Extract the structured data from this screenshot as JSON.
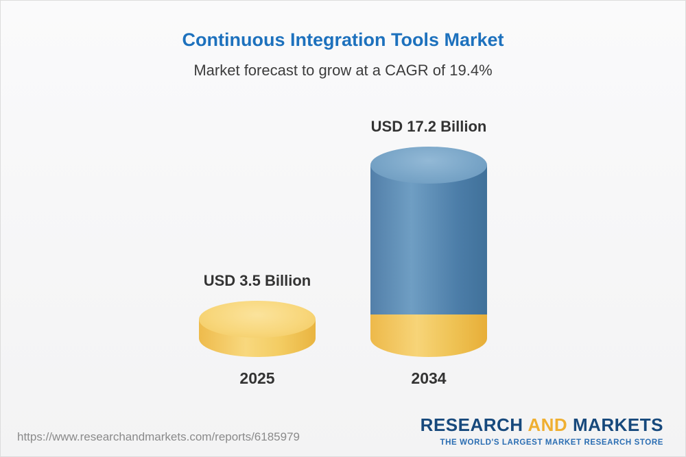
{
  "header": {
    "title": "Continuous Integration Tools Market",
    "subtitle": "Market forecast to grow at a CAGR of 19.4%"
  },
  "chart_data": {
    "type": "bar",
    "categories": [
      "2025",
      "2034"
    ],
    "values": [
      3.5,
      17.2
    ],
    "value_labels": [
      "USD 3.5 Billion",
      "USD 17.2 Billion"
    ],
    "unit": "USD Billion",
    "title": "Continuous Integration Tools Market",
    "subtitle": "Market forecast to grow at a CAGR of 19.4%",
    "cagr": "19.4%",
    "ylim": [
      0,
      20
    ],
    "grid": false,
    "legend": "none",
    "colors": {
      "bar_2025": "#f3cc62",
      "bar_2034_body": "#4c7da8",
      "bar_2034_base": "#efc355"
    }
  },
  "footer": {
    "url": "https://www.researchandmarkets.com/reports/6185979",
    "logo": {
      "research": "RESEARCH",
      "and": "AND",
      "markets": "MARKETS",
      "tagline": "THE WORLD'S LARGEST MARKET RESEARCH STORE"
    }
  }
}
